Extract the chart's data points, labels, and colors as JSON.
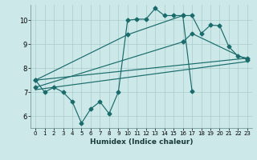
{
  "background_color": "#cce8e8",
  "grid_color": "#aacccc",
  "line_color": "#1a6b6b",
  "xlabel": "Humidex (Indice chaleur)",
  "xlim": [
    -0.5,
    23.5
  ],
  "ylim": [
    5.5,
    10.65
  ],
  "yticks": [
    6,
    7,
    8,
    9,
    10
  ],
  "xticks": [
    0,
    1,
    2,
    3,
    4,
    5,
    6,
    7,
    8,
    9,
    10,
    11,
    12,
    13,
    14,
    15,
    16,
    17,
    18,
    19,
    20,
    21,
    22,
    23
  ],
  "series1_x": [
    0,
    1,
    2,
    3,
    4,
    5,
    6,
    7,
    8,
    9,
    10,
    11,
    12,
    13,
    14,
    15,
    16,
    17
  ],
  "series1_y": [
    7.5,
    7.0,
    7.2,
    7.0,
    6.6,
    5.7,
    6.3,
    6.6,
    6.1,
    7.0,
    10.0,
    10.05,
    10.05,
    10.5,
    10.2,
    10.2,
    10.2,
    7.05
  ],
  "series2_x": [
    0,
    10,
    16,
    17,
    18,
    19,
    20,
    21,
    22,
    23
  ],
  "series2_y": [
    7.5,
    9.4,
    10.2,
    10.2,
    9.45,
    9.8,
    9.78,
    8.9,
    8.5,
    8.42
  ],
  "series3_x": [
    0,
    23
  ],
  "series3_y": [
    7.5,
    8.42
  ],
  "series4_x": [
    0,
    16,
    17,
    23
  ],
  "series4_y": [
    7.2,
    9.1,
    9.45,
    8.35
  ],
  "series5_x": [
    0,
    23
  ],
  "series5_y": [
    7.1,
    8.28
  ]
}
